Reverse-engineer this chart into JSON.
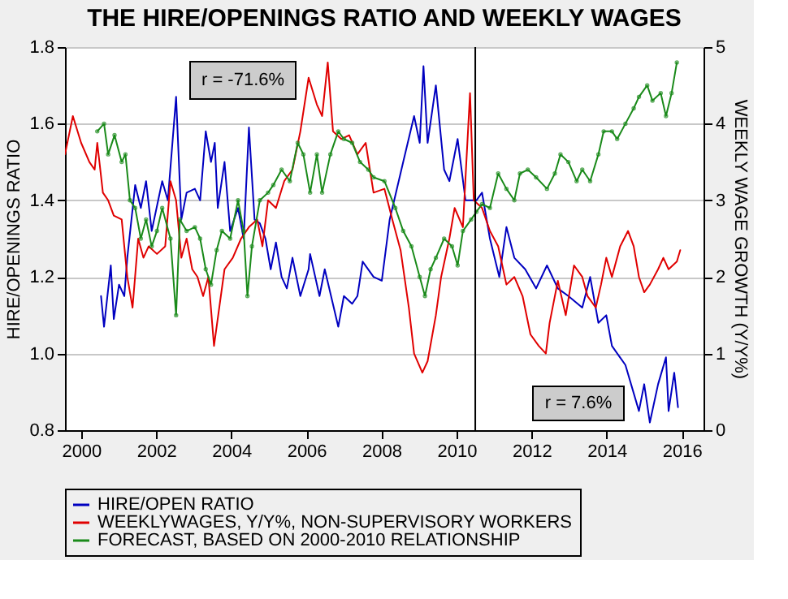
{
  "chart_data": {
    "type": "line",
    "title": "THE HIRE/OPENINGS RATIO AND WEEKLY WAGES",
    "ylabel": "HIRE/OPENINGS RATIO",
    "y2label": "WEEKLY WAGE GROWTH (Y/Y%)",
    "xlim": [
      1999.57,
      2016.58
    ],
    "xticks": [
      2000,
      2002,
      2004,
      2006,
      2008,
      2010,
      2012,
      2014,
      2016
    ],
    "ylim": [
      0.8,
      1.8
    ],
    "yticks": [
      0.8,
      {
        "value": 1.0,
        "label": "1.0"
      },
      1.2,
      1.4,
      1.6,
      1.8
    ],
    "y2lim": [
      0,
      5
    ],
    "y2ticks": [
      0,
      1,
      2,
      3,
      4,
      5
    ],
    "grid": "y",
    "legend": "bottom",
    "ref_lines": [
      {
        "axis": "x",
        "value": 2010.5,
        "color": "#000000"
      }
    ],
    "annotations": [
      "r = -71.6%",
      "r = 7.6%"
    ],
    "series": [
      {
        "name": "HIRE/OPEN RATIO",
        "color": "#0000c0",
        "axis": "y",
        "marker": "none",
        "x": [
          2000.53,
          2000.61,
          2000.79,
          2000.87,
          2001.01,
          2001.15,
          2001.23,
          2001.44,
          2001.59,
          2001.73,
          2001.88,
          2002.16,
          2002.31,
          2002.53,
          2002.67,
          2002.81,
          2003.03,
          2003.17,
          2003.32,
          2003.46,
          2003.56,
          2003.64,
          2003.82,
          2003.97,
          2004.18,
          2004.33,
          2004.47,
          2004.62,
          2004.76,
          2004.91,
          2005.05,
          2005.19,
          2005.34,
          2005.48,
          2005.63,
          2005.84,
          2006.06,
          2006.1,
          2006.35,
          2006.49,
          2006.85,
          2007.0,
          2007.22,
          2007.36,
          2007.5,
          2007.79,
          2008.01,
          2008.22,
          2008.58,
          2008.87,
          2009.02,
          2009.12,
          2009.23,
          2009.45,
          2009.67,
          2009.81,
          2010.03,
          2010.24,
          2010.53,
          2010.68,
          2010.89,
          2011.14,
          2011.33,
          2011.54,
          2011.83,
          2012.12,
          2012.41,
          2012.7,
          2012.98,
          2013.35,
          2013.56,
          2013.78,
          2013.99,
          2014.14,
          2014.5,
          2014.86,
          2015.0,
          2015.15,
          2015.37,
          2015.58,
          2015.65,
          2015.8,
          2015.9
        ],
        "values": [
          1.15,
          1.07,
          1.23,
          1.09,
          1.18,
          1.15,
          1.25,
          1.44,
          1.38,
          1.45,
          1.32,
          1.45,
          1.4,
          1.67,
          1.35,
          1.42,
          1.43,
          1.4,
          1.58,
          1.5,
          1.55,
          1.38,
          1.5,
          1.32,
          1.38,
          1.3,
          1.59,
          1.35,
          1.34,
          1.3,
          1.22,
          1.29,
          1.2,
          1.17,
          1.25,
          1.15,
          1.22,
          1.26,
          1.15,
          1.22,
          1.07,
          1.15,
          1.13,
          1.15,
          1.24,
          1.2,
          1.19,
          1.35,
          1.5,
          1.62,
          1.55,
          1.75,
          1.55,
          1.7,
          1.48,
          1.45,
          1.56,
          1.4,
          1.4,
          1.42,
          1.3,
          1.2,
          1.33,
          1.25,
          1.22,
          1.17,
          1.23,
          1.17,
          1.15,
          1.12,
          1.2,
          1.08,
          1.1,
          1.02,
          0.97,
          0.85,
          0.92,
          0.82,
          0.92,
          0.99,
          0.85,
          0.95,
          0.86
        ]
      },
      {
        "name": "WEEKLYWAGES, Y/Y%, NON-SUPERVISORY WORKERS",
        "color": "#e00000",
        "axis": "y2",
        "marker": "none",
        "x": [
          1999.57,
          1999.78,
          2000.0,
          2000.22,
          2000.36,
          2000.43,
          2000.58,
          2000.72,
          2000.87,
          2001.08,
          2001.23,
          2001.37,
          2001.52,
          2001.66,
          2001.8,
          2002.02,
          2002.24,
          2002.38,
          2002.53,
          2002.67,
          2002.81,
          2002.96,
          2003.1,
          2003.25,
          2003.39,
          2003.54,
          2003.68,
          2003.82,
          2004.04,
          2004.26,
          2004.47,
          2004.69,
          2004.83,
          2004.98,
          2005.19,
          2005.41,
          2005.63,
          2005.84,
          2006.06,
          2006.28,
          2006.42,
          2006.57,
          2006.71,
          2006.93,
          2007.14,
          2007.36,
          2007.58,
          2007.79,
          2008.08,
          2008.29,
          2008.51,
          2008.73,
          2008.87,
          2009.09,
          2009.23,
          2009.45,
          2009.59,
          2009.81,
          2009.95,
          2010.17,
          2010.36,
          2010.46,
          2010.68,
          2010.89,
          2011.11,
          2011.33,
          2011.54,
          2011.76,
          2011.97,
          2012.19,
          2012.38,
          2012.48,
          2012.7,
          2012.91,
          2013.13,
          2013.35,
          2013.49,
          2013.71,
          2013.85,
          2013.99,
          2014.14,
          2014.36,
          2014.57,
          2014.72,
          2014.86,
          2015.0,
          2015.15,
          2015.37,
          2015.51,
          2015.65,
          2015.87,
          2015.96
        ],
        "values": [
          3.6,
          4.1,
          3.75,
          3.5,
          3.4,
          3.75,
          3.1,
          3.0,
          2.8,
          2.75,
          2.0,
          1.6,
          2.5,
          2.25,
          2.4,
          2.3,
          2.4,
          3.25,
          3.0,
          2.25,
          2.5,
          2.1,
          2.0,
          1.75,
          2.0,
          1.1,
          1.6,
          2.1,
          2.25,
          2.5,
          2.65,
          2.75,
          2.4,
          3.0,
          2.9,
          3.25,
          3.4,
          3.9,
          4.6,
          4.25,
          4.1,
          4.8,
          3.9,
          3.8,
          3.85,
          3.6,
          3.75,
          3.1,
          3.15,
          2.75,
          2.35,
          1.6,
          1.0,
          0.75,
          0.9,
          1.5,
          2.0,
          2.5,
          2.9,
          2.65,
          4.4,
          3.0,
          2.9,
          2.6,
          2.4,
          1.9,
          2.0,
          1.75,
          1.25,
          1.1,
          1.0,
          1.4,
          1.95,
          1.5,
          2.15,
          2.0,
          1.75,
          1.6,
          1.9,
          2.25,
          2.0,
          2.4,
          2.6,
          2.4,
          2.0,
          1.8,
          1.9,
          2.1,
          2.25,
          2.1,
          2.2,
          2.35
        ]
      },
      {
        "name": "FORECAST, BASED ON 2000-2010 RELATIONSHIP",
        "color": "#1a8a1a",
        "axis": "y2",
        "marker": "circle",
        "x": [
          2000.43,
          2000.61,
          2000.72,
          2000.89,
          2001.08,
          2001.18,
          2001.3,
          2001.44,
          2001.59,
          2001.73,
          2001.88,
          2002.02,
          2002.16,
          2002.38,
          2002.53,
          2002.63,
          2002.81,
          2003.03,
          2003.17,
          2003.32,
          2003.46,
          2003.61,
          2003.75,
          2003.97,
          2004.18,
          2004.33,
          2004.43,
          2004.55,
          2004.76,
          2004.98,
          2005.12,
          2005.34,
          2005.56,
          2005.77,
          2005.92,
          2006.1,
          2006.28,
          2006.42,
          2006.64,
          2006.85,
          2007.0,
          2007.22,
          2007.43,
          2007.65,
          2007.79,
          2008.08,
          2008.37,
          2008.58,
          2008.8,
          2009.02,
          2009.16,
          2009.31,
          2009.45,
          2009.67,
          2009.88,
          2010.03,
          2010.17,
          2010.39,
          2010.53,
          2010.68,
          2010.89,
          2011.11,
          2011.33,
          2011.54,
          2011.69,
          2011.9,
          2012.12,
          2012.41,
          2012.62,
          2012.77,
          2012.98,
          2013.2,
          2013.35,
          2013.56,
          2013.78,
          2013.92,
          2014.14,
          2014.28,
          2014.5,
          2014.72,
          2014.86,
          2015.08,
          2015.22,
          2015.44,
          2015.58,
          2015.73,
          2015.87
        ],
        "values": [
          3.9,
          4.0,
          3.6,
          3.85,
          3.5,
          3.6,
          3.0,
          2.9,
          2.5,
          2.75,
          2.4,
          2.6,
          2.9,
          2.5,
          1.5,
          2.75,
          2.6,
          2.65,
          2.5,
          2.1,
          1.9,
          2.35,
          2.6,
          2.5,
          3.0,
          2.6,
          1.75,
          2.4,
          3.0,
          3.1,
          3.2,
          3.4,
          3.25,
          3.75,
          3.6,
          3.1,
          3.6,
          3.1,
          3.6,
          3.9,
          3.8,
          3.75,
          3.5,
          3.4,
          3.3,
          3.25,
          2.9,
          2.6,
          2.4,
          2.0,
          1.75,
          2.1,
          2.25,
          2.5,
          2.4,
          2.15,
          2.6,
          2.75,
          2.85,
          2.95,
          2.9,
          3.35,
          3.15,
          3.0,
          3.35,
          3.4,
          3.3,
          3.15,
          3.35,
          3.6,
          3.5,
          3.25,
          3.4,
          3.25,
          3.6,
          3.9,
          3.9,
          3.8,
          4.0,
          4.2,
          4.35,
          4.5,
          4.3,
          4.4,
          4.1,
          4.4,
          4.8
        ]
      }
    ]
  }
}
